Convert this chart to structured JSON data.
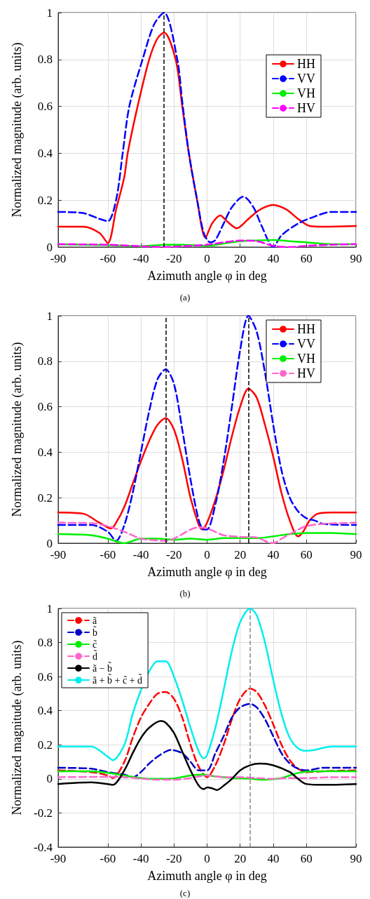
{
  "chart_data": [
    {
      "type": "line",
      "xlabel": "Azimuth angle φ in deg",
      "ylabel": "Normalized magnitude (arb. units)",
      "annotations": [
        "(a)"
      ],
      "xlim": [
        -90,
        90
      ],
      "xticks": [
        -90,
        -60,
        -40,
        -20,
        0,
        20,
        40,
        60,
        90
      ],
      "ylim": [
        0,
        1
      ],
      "yticks": [
        0,
        0.2,
        0.4,
        0.6,
        0.8,
        1
      ],
      "grid": true,
      "legend": "right",
      "marker": "none",
      "ref_lines": [
        {
          "axis": "x",
          "value": -26,
          "color": "#000000",
          "line_style": "dashed"
        }
      ],
      "series": [
        {
          "name": "HH",
          "color": "#ff0000",
          "line_style": "solid",
          "x": [
            -90,
            -75,
            -65,
            -60,
            -55,
            -50,
            -48,
            -42,
            -35,
            -30,
            -26,
            -19,
            -15,
            -11,
            -6,
            -1,
            3,
            8,
            12,
            18,
            25,
            32,
            40,
            48,
            55,
            62,
            70,
            90
          ],
          "values": [
            0.087,
            0.087,
            0.06,
            0.017,
            0.16,
            0.3,
            0.4,
            0.6,
            0.8,
            0.89,
            0.915,
            0.8,
            0.6,
            0.4,
            0.2,
            0.04,
            0.1,
            0.135,
            0.11,
            0.08,
            0.12,
            0.16,
            0.18,
            0.16,
            0.12,
            0.09,
            0.087,
            0.09
          ]
        },
        {
          "name": "VV",
          "color": "#0000ff",
          "line_style": "dashed",
          "x": [
            -90,
            -75,
            -65,
            -60,
            -55,
            -51,
            -47,
            -39,
            -32,
            -26,
            -18,
            -15,
            -11,
            -6,
            -2,
            2,
            5,
            10,
            15,
            22,
            28,
            33,
            40,
            45,
            55,
            65,
            75,
            90
          ],
          "values": [
            0.15,
            0.145,
            0.12,
            0.11,
            0.2,
            0.4,
            0.6,
            0.8,
            0.95,
            1.0,
            0.8,
            0.62,
            0.4,
            0.2,
            0.06,
            0.02,
            0.03,
            0.1,
            0.17,
            0.215,
            0.17,
            0.09,
            0.0,
            0.05,
            0.1,
            0.13,
            0.15,
            0.15
          ]
        },
        {
          "name": "VH",
          "color": "#00ee00",
          "line_style": "solid",
          "x": [
            -90,
            -60,
            -40,
            -25,
            -15,
            0,
            10,
            20,
            30,
            40,
            50,
            60,
            75,
            90
          ],
          "values": [
            0.012,
            0.008,
            0.003,
            0.01,
            0.01,
            0.005,
            0.015,
            0.025,
            0.028,
            0.03,
            0.025,
            0.02,
            0.012,
            0.012
          ]
        },
        {
          "name": "HV",
          "color": "#ff00ff",
          "line_style": "dashed",
          "x": [
            -90,
            -60,
            -40,
            -26,
            -15,
            0,
            10,
            20,
            30,
            40,
            50,
            60,
            75,
            90
          ],
          "values": [
            0.012,
            0.01,
            0.003,
            0.0,
            0.003,
            0.01,
            0.02,
            0.028,
            0.025,
            0.005,
            0.0,
            0.005,
            0.01,
            0.012
          ]
        }
      ]
    },
    {
      "type": "line",
      "xlabel": "Azimuth angle φ in deg",
      "ylabel": "Normalized magnitude (arb. units)",
      "annotations": [
        "(b)"
      ],
      "xlim": [
        -90,
        90
      ],
      "xticks": [
        -90,
        -60,
        -40,
        -20,
        0,
        20,
        40,
        60,
        90
      ],
      "ylim": [
        0,
        1
      ],
      "yticks": [
        0,
        0.2,
        0.4,
        0.6,
        0.8,
        1
      ],
      "grid": true,
      "legend": "top right",
      "marker": "none",
      "ref_lines": [
        {
          "axis": "x",
          "value": -25,
          "color": "#000000",
          "line_style": "dashed"
        },
        {
          "axis": "x",
          "value": 25,
          "color": "#000000",
          "line_style": "dashed"
        }
      ],
      "series": [
        {
          "name": "HH",
          "color": "#ff0000",
          "line_style": "solid",
          "x": [
            -90,
            -75,
            -65,
            -58,
            -55,
            -50,
            -45,
            -40,
            -35,
            -30,
            -25,
            -20,
            -15,
            -10,
            -5,
            -3,
            0,
            5,
            10,
            15,
            20,
            25,
            30,
            35,
            40,
            45,
            50,
            55,
            58,
            62,
            67,
            75,
            90
          ],
          "values": [
            0.135,
            0.13,
            0.09,
            0.065,
            0.09,
            0.16,
            0.26,
            0.36,
            0.45,
            0.52,
            0.55,
            0.5,
            0.37,
            0.2,
            0.08,
            0.06,
            0.09,
            0.19,
            0.32,
            0.47,
            0.6,
            0.68,
            0.64,
            0.52,
            0.38,
            0.22,
            0.1,
            0.03,
            0.05,
            0.1,
            0.13,
            0.135,
            0.135
          ]
        },
        {
          "name": "VV",
          "color": "#0000ff",
          "line_style": "dashed",
          "x": [
            -90,
            -70,
            -60,
            -55,
            -50,
            -45,
            -40,
            -35,
            -30,
            -25,
            -20,
            -15,
            -10,
            -5,
            -2,
            0,
            5,
            10,
            15,
            20,
            25,
            30,
            35,
            40,
            45,
            50,
            55,
            60,
            65,
            70,
            90
          ],
          "values": [
            0.08,
            0.08,
            0.05,
            0.01,
            0.08,
            0.22,
            0.4,
            0.58,
            0.72,
            0.765,
            0.7,
            0.5,
            0.28,
            0.1,
            0.06,
            0.06,
            0.17,
            0.36,
            0.6,
            0.85,
            1.0,
            0.93,
            0.75,
            0.52,
            0.32,
            0.2,
            0.14,
            0.11,
            0.1,
            0.085,
            0.08
          ]
        },
        {
          "name": "VH",
          "color": "#00ee00",
          "line_style": "solid",
          "x": [
            -90,
            -70,
            -60,
            -50,
            -45,
            -40,
            -30,
            -20,
            -10,
            0,
            10,
            20,
            30,
            40,
            50,
            60,
            75,
            90
          ],
          "values": [
            0.04,
            0.035,
            0.02,
            0.0,
            0.01,
            0.02,
            0.02,
            0.015,
            0.02,
            0.015,
            0.022,
            0.022,
            0.022,
            0.03,
            0.04,
            0.045,
            0.045,
            0.04
          ]
        },
        {
          "name": "HV",
          "color": "#ff66cc",
          "line_style": "dashed",
          "x": [
            -90,
            -70,
            -60,
            -50,
            -40,
            -30,
            -25,
            -20,
            -15,
            -10,
            -5,
            0,
            5,
            10,
            20,
            30,
            35,
            40,
            45,
            50,
            55,
            60,
            70,
            90
          ],
          "values": [
            0.09,
            0.088,
            0.075,
            0.05,
            0.02,
            0.012,
            0.01,
            0.02,
            0.04,
            0.06,
            0.07,
            0.065,
            0.05,
            0.035,
            0.028,
            0.025,
            0.01,
            0.0,
            0.02,
            0.04,
            0.06,
            0.075,
            0.085,
            0.09
          ]
        }
      ]
    },
    {
      "type": "line",
      "xlabel": "Azimuth angle φ in deg",
      "ylabel": "Normalized magnitude (arb. units)",
      "annotations": [
        "(c)"
      ],
      "xlim": [
        -90,
        90
      ],
      "xticks": [
        -90,
        -60,
        -40,
        -20,
        0,
        20,
        40,
        60,
        90
      ],
      "ylim": [
        -0.4,
        1
      ],
      "yticks": [
        -0.4,
        -0.2,
        0,
        0.2,
        0.4,
        0.6,
        0.8,
        1
      ],
      "grid": true,
      "legend": "top left",
      "marker": "none",
      "ref_lines": [
        {
          "axis": "x",
          "value": 26,
          "color": "#888888",
          "line_style": "dashed"
        }
      ],
      "series": [
        {
          "name": "ã",
          "color": "#ff0000",
          "line_style": "dashed",
          "x": [
            -90,
            -70,
            -60,
            -57,
            -50,
            -45,
            -40,
            -35,
            -30,
            -25,
            -20,
            -15,
            -10,
            -5,
            0,
            5,
            10,
            15,
            20,
            26,
            30,
            35,
            40,
            45,
            50,
            55,
            60,
            70,
            90
          ],
          "values": [
            0.05,
            0.04,
            0.02,
            0.005,
            0.1,
            0.24,
            0.36,
            0.44,
            0.5,
            0.51,
            0.47,
            0.36,
            0.2,
            0.07,
            0.01,
            0.08,
            0.2,
            0.35,
            0.47,
            0.53,
            0.51,
            0.43,
            0.32,
            0.2,
            0.11,
            0.06,
            0.04,
            0.045,
            0.05
          ]
        },
        {
          "name": "b̃",
          "color": "#0000cc",
          "line_style": "dashed",
          "x": [
            -90,
            -70,
            -60,
            -50,
            -45,
            -40,
            -35,
            -30,
            -25,
            -22,
            -15,
            -10,
            -5,
            0,
            5,
            10,
            15,
            20,
            26,
            30,
            35,
            40,
            45,
            50,
            55,
            60,
            70,
            90
          ],
          "values": [
            0.065,
            0.06,
            0.04,
            0.025,
            0.01,
            0.04,
            0.09,
            0.13,
            0.16,
            0.17,
            0.15,
            0.1,
            0.05,
            0.05,
            0.15,
            0.25,
            0.36,
            0.42,
            0.44,
            0.42,
            0.35,
            0.25,
            0.15,
            0.09,
            0.06,
            0.05,
            0.065,
            0.065
          ]
        },
        {
          "name": "c̃",
          "color": "#00ee00",
          "line_style": "solid",
          "x": [
            -90,
            -70,
            -60,
            -50,
            -40,
            -30,
            -20,
            -10,
            -3,
            5,
            15,
            25,
            35,
            45,
            55,
            65,
            90
          ],
          "values": [
            0.045,
            0.045,
            0.035,
            0.02,
            0.005,
            0.0,
            0.003,
            0.02,
            0.025,
            0.015,
            0.005,
            0.002,
            -0.005,
            0.005,
            0.035,
            0.045,
            0.045
          ]
        },
        {
          "name": "d̃",
          "color": "#ff66cc",
          "line_style": "dashed",
          "x": [
            -90,
            -60,
            -50,
            -40,
            -30,
            -20,
            -10,
            0,
            10,
            20,
            30,
            40,
            50,
            60,
            75,
            90
          ],
          "values": [
            0.01,
            0.012,
            0.01,
            0.002,
            -0.005,
            -0.005,
            0.005,
            0.02,
            0.01,
            0.01,
            0.005,
            0.0,
            0.005,
            0.005,
            0.01,
            0.01
          ]
        },
        {
          "name": "ã − b̃",
          "color": "#000000",
          "line_style": "solid",
          "x": [
            -90,
            -70,
            -60,
            -57,
            -50,
            -45,
            -40,
            -35,
            -28,
            -25,
            -20,
            -15,
            -10,
            -5,
            -2,
            0,
            3,
            6,
            10,
            15,
            20,
            26,
            32,
            40,
            50,
            55,
            60,
            70,
            90
          ],
          "values": [
            -0.03,
            -0.02,
            -0.03,
            -0.035,
            0.05,
            0.15,
            0.24,
            0.3,
            0.34,
            0.33,
            0.27,
            0.16,
            0.05,
            -0.04,
            -0.06,
            -0.05,
            -0.055,
            -0.065,
            -0.04,
            0.0,
            0.05,
            0.08,
            0.09,
            0.08,
            0.04,
            0.0,
            -0.03,
            -0.035,
            -0.03
          ]
        },
        {
          "name": "ã + b̃ + c̃ + d̃",
          "color": "#00eeee",
          "line_style": "solid",
          "x": [
            -90,
            -70,
            -60,
            -57,
            -50,
            -45,
            -40,
            -35,
            -30,
            -25,
            -20,
            -15,
            -10,
            -5,
            -2,
            0,
            5,
            10,
            15,
            20,
            26,
            30,
            35,
            40,
            45,
            50,
            55,
            60,
            65,
            75,
            90
          ],
          "values": [
            0.19,
            0.19,
            0.13,
            0.11,
            0.2,
            0.38,
            0.52,
            0.63,
            0.69,
            0.69,
            0.6,
            0.46,
            0.3,
            0.16,
            0.12,
            0.14,
            0.3,
            0.52,
            0.75,
            0.92,
            1.0,
            0.96,
            0.8,
            0.58,
            0.38,
            0.24,
            0.18,
            0.165,
            0.17,
            0.19,
            0.19
          ]
        }
      ]
    }
  ]
}
